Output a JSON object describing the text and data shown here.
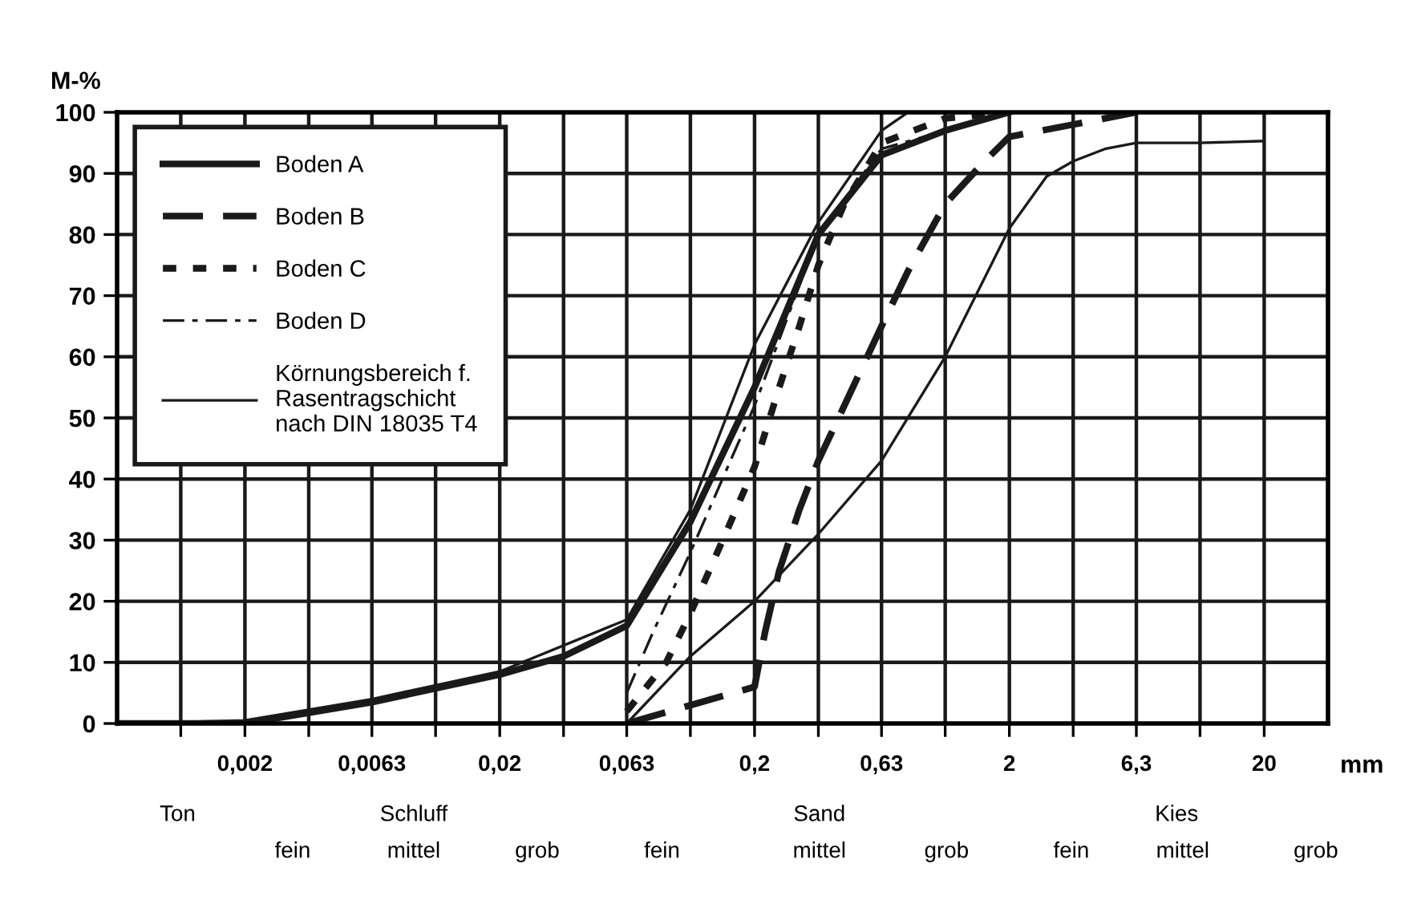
{
  "chart_data": {
    "type": "line",
    "ylabel": "M-%",
    "xlabel": "mm",
    "log": "x",
    "xlim": [
      0.00063,
      35.6
    ],
    "ylim": [
      0,
      100
    ],
    "xticks": [
      {
        "value": 0.00112,
        "label": null
      },
      {
        "value": 0.002,
        "label": "0,002"
      },
      {
        "value": 0.00356,
        "label": null
      },
      {
        "value": 0.0063,
        "label": "0,0063"
      },
      {
        "value": 0.0112,
        "label": null
      },
      {
        "value": 0.02,
        "label": "0,02"
      },
      {
        "value": 0.0356,
        "label": null
      },
      {
        "value": 0.063,
        "label": "0,063"
      },
      {
        "value": 0.112,
        "label": null
      },
      {
        "value": 0.2,
        "label": "0,2"
      },
      {
        "value": 0.356,
        "label": null
      },
      {
        "value": 0.63,
        "label": "0,63"
      },
      {
        "value": 1.12,
        "label": null
      },
      {
        "value": 2,
        "label": "2"
      },
      {
        "value": 3.56,
        "label": null
      },
      {
        "value": 6.3,
        "label": "6,3"
      },
      {
        "value": 11.2,
        "label": null
      },
      {
        "value": 20,
        "label": "20"
      }
    ],
    "yticks": [
      0,
      10,
      20,
      30,
      40,
      50,
      60,
      70,
      80,
      90,
      100
    ],
    "grid": true,
    "legend": "top left",
    "series": [
      {
        "name": "Boden A",
        "color": "#1a1a1a",
        "line_style": "solid",
        "x": [
          0.00063,
          0.002,
          0.0063,
          0.02,
          0.0356,
          0.063,
          0.112,
          0.2,
          0.356,
          0.63,
          1.12,
          2
        ],
        "values": [
          0,
          0,
          3.5,
          8,
          11,
          16,
          33,
          55,
          80,
          93,
          97,
          100
        ]
      },
      {
        "name": "Boden B",
        "color": "#1a1a1a",
        "line_style": "dashed",
        "x": [
          0.063,
          0.112,
          0.2,
          0.22,
          0.25,
          0.3,
          0.356,
          0.45,
          0.63,
          0.8,
          1.12,
          1.6,
          2,
          3.56,
          6.3
        ],
        "values": [
          0,
          3,
          6,
          15,
          25,
          35,
          43,
          52,
          65,
          74,
          85,
          92,
          96,
          98,
          100
        ]
      },
      {
        "name": "Boden C",
        "color": "#1a1a1a",
        "line_style": "dotted",
        "x": [
          0.063,
          0.09,
          0.112,
          0.15,
          0.2,
          0.25,
          0.3,
          0.356,
          0.45,
          0.63,
          1.12,
          2
        ],
        "values": [
          2,
          10,
          18,
          30,
          42,
          55,
          65,
          75,
          85,
          95,
          99,
          100
        ]
      },
      {
        "name": "Boden D",
        "color": "#1a1a1a",
        "line_style": "dashed",
        "x": [
          0.063,
          0.08,
          0.112,
          0.2,
          0.356,
          0.63,
          2
        ],
        "values": [
          5,
          15,
          28,
          52,
          80,
          94,
          100
        ]
      },
      {
        "name": "Körnungsbereich f.\nRasentragschicht\nnach DIN 18035 T4",
        "color": "#1a1a1a",
        "line_style": "solid",
        "x": [
          0.00063,
          0.002,
          0.0063,
          0.02,
          0.063,
          0.112,
          0.2,
          0.356,
          0.63,
          0.8
        ],
        "values": [
          0,
          0.5,
          4,
          8.5,
          17,
          35,
          62,
          82,
          97,
          100
        ]
      },
      {
        "color": "#1a1a1a",
        "line_style": "solid",
        "x": [
          0.063,
          0.112,
          0.2,
          0.356,
          0.63,
          1.12,
          2,
          2.8,
          3.56,
          4.74,
          6.3,
          11.2,
          20
        ],
        "values": [
          0,
          11,
          20,
          31,
          43,
          60,
          81,
          89.5,
          92,
          94,
          95,
          95,
          95.3
        ]
      }
    ],
    "annotations": [
      "Ton",
      "Schluff",
      "Sand",
      "Kies",
      "fein",
      "mittel",
      "grob",
      "fein",
      "mittel",
      "grob",
      "fein",
      "mittel",
      "grob"
    ]
  }
}
